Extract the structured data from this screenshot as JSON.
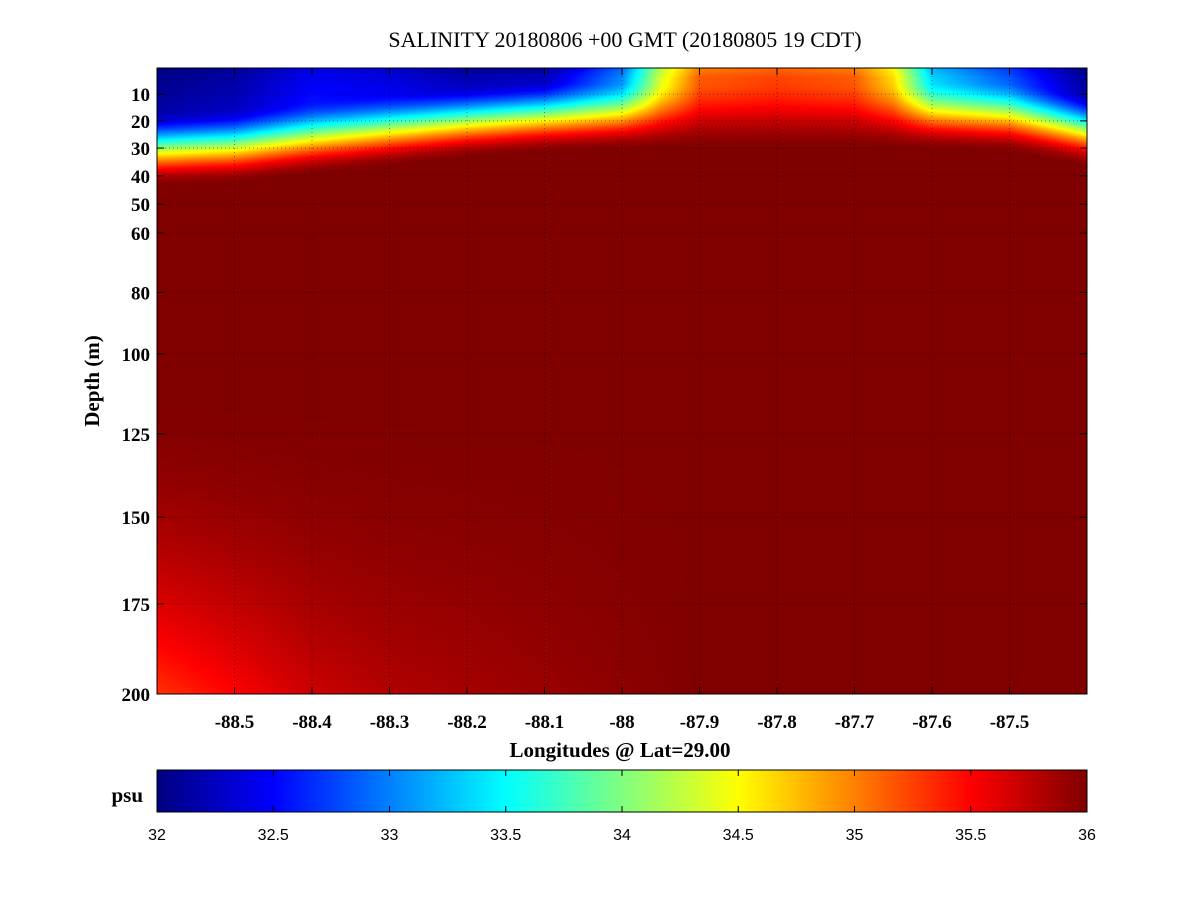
{
  "chart_data": {
    "type": "heatmap",
    "title": "SALINITY 20180806 +00 GMT (20180805 19 CDT)",
    "xlabel": "Longitudes @ Lat=29.00",
    "ylabel": "Depth (m)",
    "xlim": [
      -88.6,
      -87.4
    ],
    "ylim": [
      200,
      0
    ],
    "x_ticks": [
      -88.5,
      -88.4,
      -88.3,
      -88.2,
      -88.1,
      -88,
      -87.9,
      -87.8,
      -87.7,
      -87.6,
      -87.5
    ],
    "x_tick_labels": [
      "-88.5",
      "-88.4",
      "-88.3",
      "-88.2",
      "-88.1",
      "-88",
      "-87.9",
      "-87.8",
      "-87.7",
      "-87.6",
      "-87.5"
    ],
    "y_ticks": [
      10,
      20,
      30,
      40,
      50,
      60,
      80,
      100,
      125,
      150,
      175,
      200
    ],
    "y_tick_labels": [
      "10",
      "20",
      "30",
      "40",
      "50",
      "60",
      "80",
      "100",
      "125",
      "150",
      "175",
      "200"
    ],
    "grid": true,
    "colormap": "jet",
    "colorbar": {
      "label": "psu",
      "range": [
        32,
        36
      ],
      "ticks": [
        32,
        32.5,
        33,
        33.5,
        34,
        34.5,
        35,
        35.5,
        36
      ],
      "tick_labels": [
        "32",
        "32.5",
        "33",
        "33.5",
        "34",
        "34.5",
        "35",
        "35.5",
        "36"
      ],
      "placement": "bottom"
    },
    "surface_salinity_profile": {
      "x": [
        -88.6,
        -88.5,
        -88.4,
        -88.3,
        -88.2,
        -88.1,
        -88.0,
        -87.95,
        -87.9,
        -87.8,
        -87.7,
        -87.65,
        -87.6,
        -87.5,
        -87.4
      ],
      "values": [
        32.0,
        32.1,
        32.4,
        32.3,
        32.1,
        32.1,
        32.9,
        34.2,
        35.0,
        35.1,
        35.0,
        34.5,
        33.2,
        32.7,
        32.0
      ]
    },
    "halocline_depth_profile": {
      "x": [
        -88.6,
        -88.5,
        -88.4,
        -88.3,
        -88.2,
        -88.1,
        -88.0,
        -87.9,
        -87.8,
        -87.7,
        -87.6,
        -87.5,
        -87.4
      ],
      "values": [
        32,
        31,
        28,
        25,
        22,
        20,
        19,
        19,
        19,
        19,
        19,
        20,
        25
      ]
    },
    "deep_salinity": 36.0,
    "bottom_salinity_profile": {
      "x": [
        -88.6,
        -88.5,
        -88.4,
        -88.3,
        -88.2,
        -88.1,
        -88.0,
        -87.9,
        -87.8,
        -87.7,
        -87.6,
        -87.5,
        -87.4
      ],
      "values": [
        35.3,
        35.5,
        35.7,
        35.8,
        35.85,
        35.9,
        35.95,
        36.0,
        36.0,
        36.0,
        36.0,
        36.0,
        36.0
      ]
    }
  }
}
